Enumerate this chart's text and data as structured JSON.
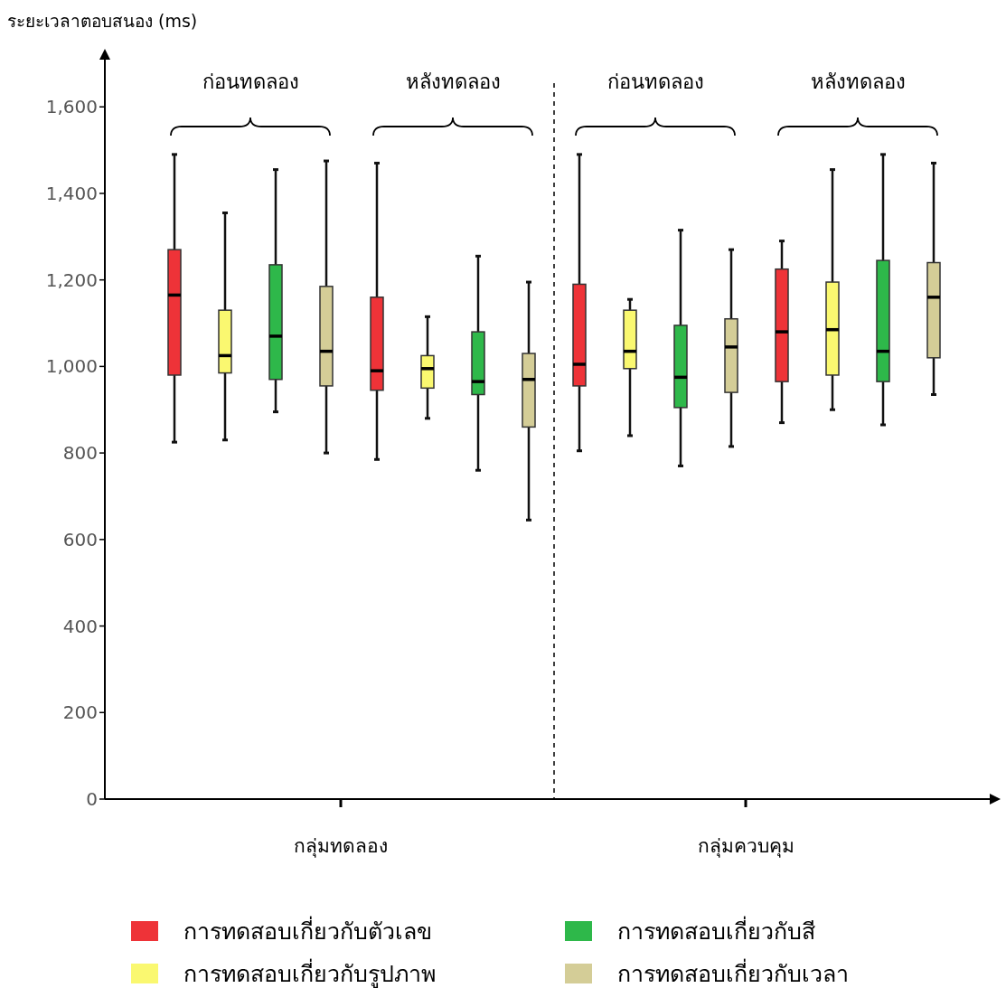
{
  "chart_data": {
    "type": "box",
    "ylabel": "ระยะเวลาตอบสนอง (ms)",
    "categories": [
      "ก่อนทดลอง",
      "หลังทดลอง",
      "ก่อนทดลอง",
      "หลังทดลอง"
    ],
    "annotations": [
      "กลุ่มทดลอง",
      "กลุ่มควบคุม"
    ],
    "ylim": [
      0,
      1730
    ],
    "yticks": [
      {
        "value": 0,
        "label": "0"
      },
      {
        "value": 200,
        "label": "200"
      },
      {
        "value": 400,
        "label": "400"
      },
      {
        "value": 600,
        "label": "600"
      },
      {
        "value": 800,
        "label": "800"
      },
      {
        "value": 1000,
        "label": "1,000"
      },
      {
        "value": 1200,
        "label": "1,200"
      },
      {
        "value": 1400,
        "label": "1,400"
      },
      {
        "value": 1600,
        "label": "1,600"
      }
    ],
    "legend": "bottom",
    "series": [
      {
        "name": "การทดสอบเกี่ยวกับตัวเลข",
        "color": "#ee3338",
        "boxes": [
          {
            "low": 825,
            "q1": 980,
            "median": 1165,
            "q3": 1270,
            "high": 1490
          },
          {
            "low": 785,
            "q1": 945,
            "median": 990,
            "q3": 1160,
            "high": 1470
          },
          {
            "low": 805,
            "q1": 955,
            "median": 1005,
            "q3": 1190,
            "high": 1490
          },
          {
            "low": 870,
            "q1": 965,
            "median": 1080,
            "q3": 1225,
            "high": 1290
          }
        ]
      },
      {
        "name": "การทดสอบเกี่ยวกับรูปภาพ",
        "color": "#faf870",
        "boxes": [
          {
            "low": 830,
            "q1": 985,
            "median": 1025,
            "q3": 1130,
            "high": 1355
          },
          {
            "low": 880,
            "q1": 950,
            "median": 995,
            "q3": 1025,
            "high": 1115
          },
          {
            "low": 840,
            "q1": 995,
            "median": 1035,
            "q3": 1130,
            "high": 1155
          },
          {
            "low": 900,
            "q1": 980,
            "median": 1085,
            "q3": 1195,
            "high": 1455
          }
        ]
      },
      {
        "name": "การทดสอบเกี่ยวกับสี",
        "color": "#2eb84a",
        "boxes": [
          {
            "low": 895,
            "q1": 970,
            "median": 1070,
            "q3": 1235,
            "high": 1455
          },
          {
            "low": 760,
            "q1": 935,
            "median": 965,
            "q3": 1080,
            "high": 1255
          },
          {
            "low": 770,
            "q1": 905,
            "median": 975,
            "q3": 1095,
            "high": 1315
          },
          {
            "low": 865,
            "q1": 965,
            "median": 1035,
            "q3": 1245,
            "high": 1490
          }
        ]
      },
      {
        "name": "การทดสอบเกี่ยวกับเวลา",
        "color": "#d4cd97",
        "boxes": [
          {
            "low": 800,
            "q1": 955,
            "median": 1035,
            "q3": 1185,
            "high": 1475
          },
          {
            "low": 645,
            "q1": 860,
            "median": 970,
            "q3": 1030,
            "high": 1195
          },
          {
            "low": 815,
            "q1": 940,
            "median": 1045,
            "q3": 1110,
            "high": 1270
          },
          {
            "low": 935,
            "q1": 1020,
            "median": 1160,
            "q3": 1240,
            "high": 1470
          }
        ]
      }
    ]
  }
}
